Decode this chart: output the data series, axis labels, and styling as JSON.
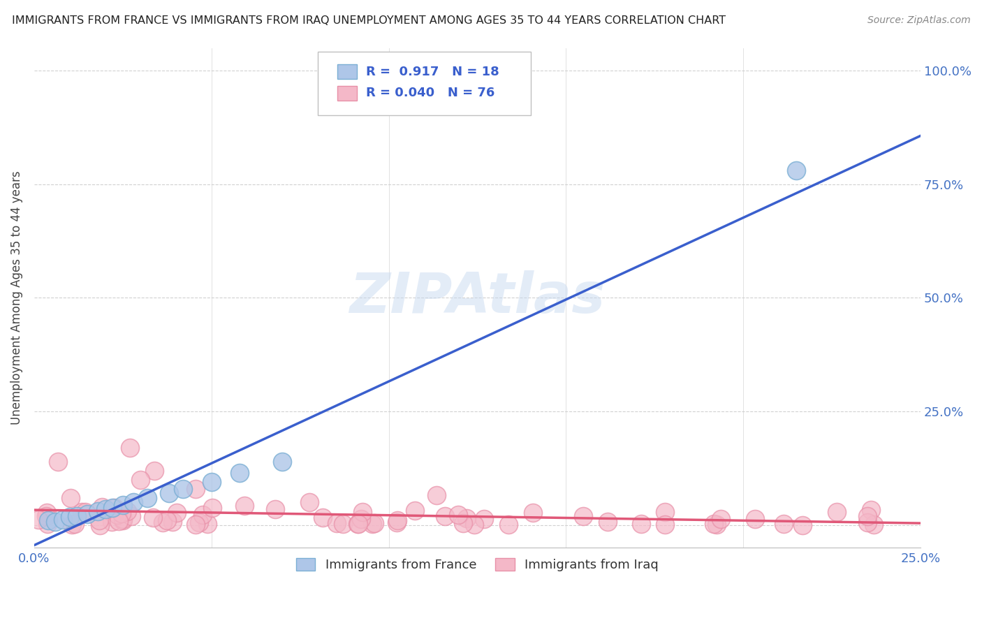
{
  "title": "IMMIGRANTS FROM FRANCE VS IMMIGRANTS FROM IRAQ UNEMPLOYMENT AMONG AGES 35 TO 44 YEARS CORRELATION CHART",
  "source": "Source: ZipAtlas.com",
  "xlim": [
    0.0,
    0.25
  ],
  "ylim": [
    -0.05,
    1.05
  ],
  "ylabel": "Unemployment Among Ages 35 to 44 years",
  "france_R": 0.917,
  "france_N": 18,
  "iraq_R": 0.04,
  "iraq_N": 76,
  "france_fill_color": "#aec6e8",
  "france_edge_color": "#7bafd4",
  "iraq_fill_color": "#f4b8c8",
  "iraq_edge_color": "#e890a8",
  "france_line_color": "#3a5fcd",
  "iraq_line_color": "#e05878",
  "background_color": "#ffffff",
  "grid_color": "#cccccc",
  "title_color": "#222222",
  "source_color": "#888888",
  "tick_color": "#4472c4",
  "ylabel_color": "#444444",
  "legend_france_fill": "#aec6e8",
  "legend_france_edge": "#7bafd4",
  "legend_iraq_fill": "#f4b8c8",
  "legend_iraq_edge": "#e890a8",
  "watermark_color": "#c8daf0"
}
